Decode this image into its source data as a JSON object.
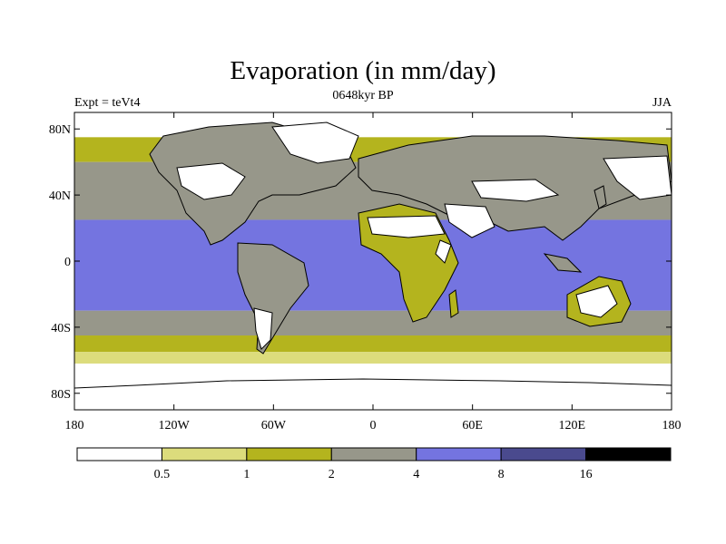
{
  "title": "Evaporation (in mm/day)",
  "subtitle": "0648kyr BP",
  "left_label": "Expt = teVt4",
  "right_label": "JJA",
  "lat_ticks": [
    "80N",
    "40N",
    "0",
    "40S",
    "80S"
  ],
  "lon_ticks": [
    "180",
    "120W",
    "60W",
    "0",
    "60E",
    "120E",
    "180"
  ],
  "colorbar": {
    "colors": [
      "#ffffff",
      "#dcdc7c",
      "#b4b41e",
      "#97978a",
      "#7474e0",
      "#4a4a8e",
      "#000000"
    ],
    "labels": [
      "0.5",
      "1",
      "2",
      "4",
      "8",
      "16"
    ]
  },
  "chart_data": {
    "type": "heatmap",
    "variable": "Evaporation",
    "units": "mm/day",
    "season": "JJA",
    "levels": [
      0.5,
      1,
      2,
      4,
      8,
      16
    ],
    "xlim": [
      -180,
      180
    ],
    "ylim": [
      -90,
      90
    ],
    "zonal_bands": [
      {
        "lat_range": [
          75,
          90
        ],
        "level_index": 0
      },
      {
        "lat_range": [
          60,
          75
        ],
        "level_index": 2
      },
      {
        "lat_range": [
          25,
          60
        ],
        "level_index": 3
      },
      {
        "lat_range": [
          -30,
          25
        ],
        "level_index": 4
      },
      {
        "lat_range": [
          -45,
          -30
        ],
        "level_index": 3
      },
      {
        "lat_range": [
          -55,
          -45
        ],
        "level_index": 2
      },
      {
        "lat_range": [
          -62,
          -55
        ],
        "level_index": 1
      },
      {
        "lat_range": [
          -90,
          -62
        ],
        "level_index": 0
      }
    ]
  }
}
